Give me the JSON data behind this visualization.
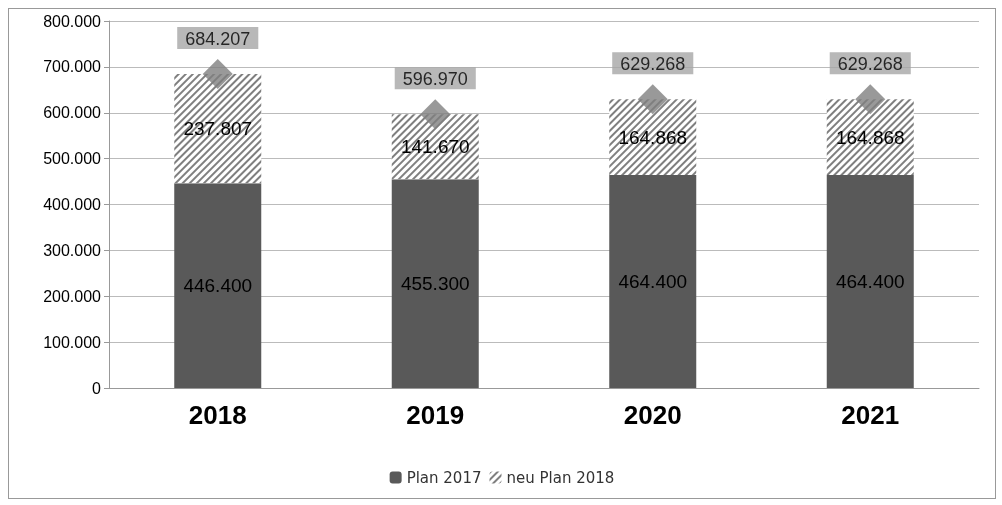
{
  "chart_data": {
    "type": "bar",
    "stacked": true,
    "categories": [
      "2018",
      "2019",
      "2020",
      "2021"
    ],
    "series": [
      {
        "name": "Plan 2017",
        "color": "#595959",
        "values": [
          446400,
          455300,
          464400,
          464400
        ],
        "value_labels": [
          "446.400",
          "455.300",
          "464.400",
          "464.400"
        ]
      },
      {
        "name": "neu Plan 2018",
        "color": "#7f7f7f",
        "values": [
          237807,
          141670,
          164868,
          164868
        ],
        "value_labels": [
          "237.807",
          "141.670",
          "164.868",
          "164.868"
        ]
      },
      {
        "type": "scatter",
        "color": "#7f7f7f",
        "marker": "diamond",
        "values": [
          684207,
          596970,
          629268,
          629268
        ],
        "value_labels": [
          "684.207",
          "596.970",
          "629.268",
          "629.268"
        ]
      }
    ],
    "ylim": [
      0,
      800000
    ],
    "yticks": [
      0,
      {
        "value": 100000,
        "label": "100.000"
      },
      {
        "value": 200000,
        "label": "200.000"
      },
      {
        "value": 300000,
        "label": "300.000"
      },
      {
        "value": 400000,
        "label": "400.000"
      },
      {
        "value": 500000,
        "label": "500.000"
      },
      {
        "value": 600000,
        "label": "600.000"
      },
      {
        "value": 700000,
        "label": "700.000"
      },
      {
        "value": 800000,
        "label": "800.000"
      }
    ],
    "grid": "y",
    "legend": "bottom"
  }
}
